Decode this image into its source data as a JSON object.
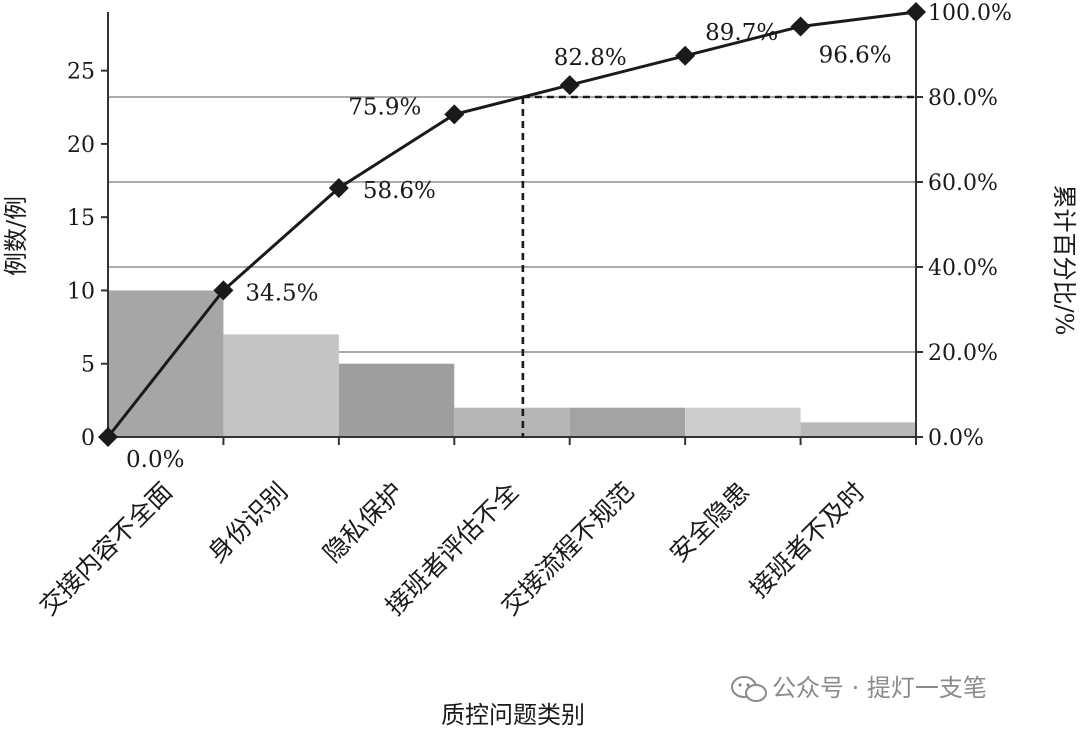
{
  "chart_data": {
    "type": "pareto",
    "xlabel": "质控问题类别",
    "ylabel_left": "例数/例",
    "ylabel_right": "累计百分比/%",
    "categories": [
      "交接内容不全面",
      "身份识别",
      "隐私保护",
      "接班者评估不全",
      "交接流程不规范",
      "安全隐患",
      "接班者不及时"
    ],
    "bar_values": [
      10,
      7,
      5,
      2,
      2,
      2,
      1
    ],
    "bar_colors": [
      "#a6a6a6",
      "#c4c4c4",
      "#9e9e9e",
      "#b6b6b6",
      "#a3a3a3",
      "#cdcdcd",
      "#b9b9b9"
    ],
    "cumulative_percent": [
      0.0,
      34.5,
      58.6,
      75.9,
      82.8,
      89.7,
      96.6,
      100.0
    ],
    "cumulative_labels": [
      "0.0%",
      "34.5%",
      "58.6%",
      "75.9%",
      "82.8%",
      "89.7%",
      "96.6%",
      ""
    ],
    "left_ylim": [
      0,
      29
    ],
    "left_ticks": [
      0,
      5,
      10,
      15,
      20,
      25
    ],
    "right_ylim": [
      0,
      100
    ],
    "right_ticks": [
      "0.0%",
      "20.0%",
      "40.0%",
      "60.0%",
      "80.0%",
      "100.0%"
    ],
    "right_tick_values": [
      0,
      20,
      40,
      60,
      80,
      100
    ],
    "threshold_percent": 80,
    "grid": true,
    "line_color": "#1a1a1a"
  },
  "watermark": {
    "icon": "wechat-icon",
    "text": "公众号 · 提灯一支笔"
  }
}
